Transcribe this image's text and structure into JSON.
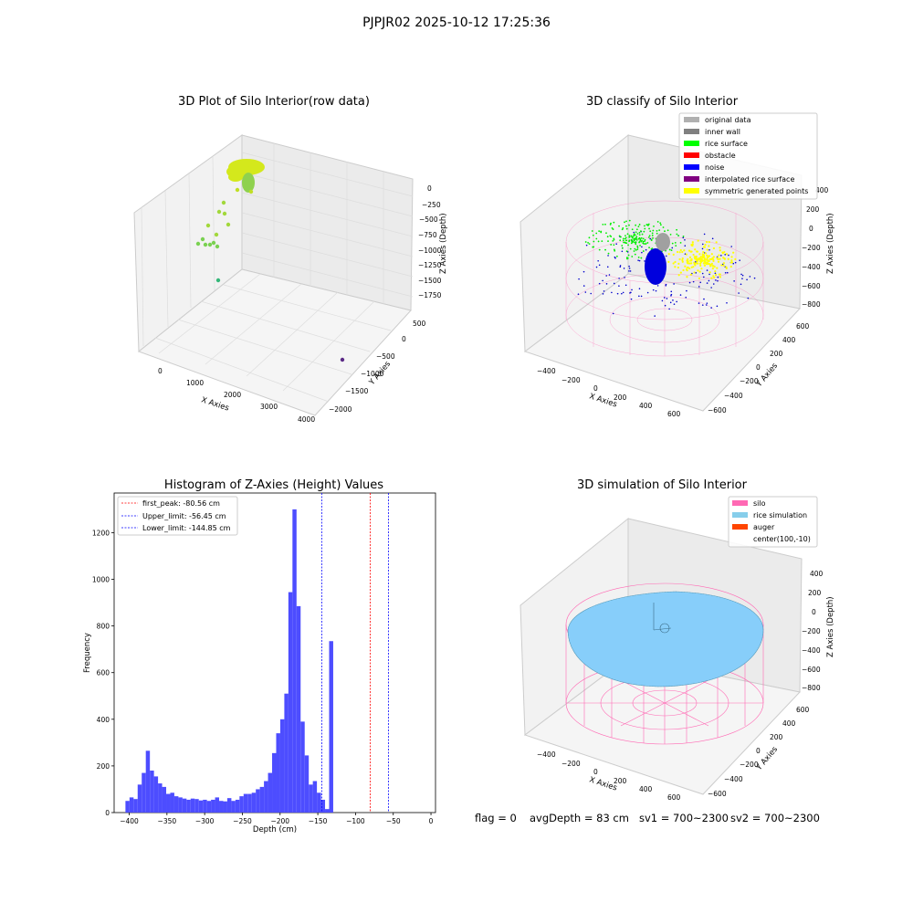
{
  "figure": {
    "suptitle": "PJPJR02 2025-10-12 17:25:36"
  },
  "colors": {
    "hist_bar": "#4d4dff",
    "first_peak_line": "#ff0000",
    "limit_line": "#0000ff",
    "silo_wire": "#ff69b4",
    "rice": "#87cefa"
  },
  "chart_data": [
    {
      "id": "raw",
      "type": "scatter",
      "projection": "3d",
      "title": "3D Plot of Silo Interior(row data)",
      "xlabel": "X Axies",
      "ylabel": "Y Axies",
      "zlabel": "Z Axies (Depth)",
      "xticks": [
        "0",
        "1000",
        "2000",
        "3000",
        "4000"
      ],
      "yticks": [
        "500",
        "0",
        "−500",
        "−1000",
        "−1500",
        "−2000"
      ],
      "zticks": [
        "0",
        "−250",
        "−500",
        "−750",
        "−1000",
        "−1250",
        "−1500",
        "−1750"
      ],
      "points": [
        {
          "x": 4000,
          "y": -1200,
          "z": -1900
        },
        {
          "x": 700,
          "y": -200,
          "z": -1650
        },
        {
          "x": 500,
          "y": 300,
          "z": -1050
        },
        {
          "x": 600,
          "y": 200,
          "z": -1000
        },
        {
          "x": 650,
          "y": 100,
          "z": -950
        },
        {
          "x": 400,
          "y": 300,
          "z": -750
        },
        {
          "x": 600,
          "y": 250,
          "z": -400
        },
        {
          "x": 500,
          "y": 250,
          "z": -100
        }
      ]
    },
    {
      "id": "classify",
      "type": "scatter",
      "projection": "3d",
      "title": "3D classify of Silo Interior",
      "xlabel": "X Axies",
      "ylabel": "Y Axies",
      "zlabel": "Z Axies (Depth)",
      "xticks": [
        "−400",
        "−200",
        "0",
        "200",
        "400",
        "600"
      ],
      "yticks": [
        "600",
        "400",
        "200",
        "0",
        "−200",
        "−400",
        "−600"
      ],
      "zticks": [
        "400",
        "200",
        "0",
        "−200",
        "−400",
        "−600",
        "−800"
      ],
      "legend": {
        "position": "top-right",
        "items": [
          {
            "label": "original data",
            "color": "#b0b0b0"
          },
          {
            "label": "inner wall",
            "color": "#808080"
          },
          {
            "label": "rice surface",
            "color": "#00ff00"
          },
          {
            "label": "obstacle",
            "color": "#ff0000"
          },
          {
            "label": "noise",
            "color": "#0000ff"
          },
          {
            "label": "interpolated rice surface",
            "color": "#800080"
          },
          {
            "label": "symmetric generated points",
            "color": "#ffff00"
          }
        ]
      }
    },
    {
      "id": "histogram",
      "type": "bar",
      "title": "Histogram of Z-Axies (Height) Values",
      "xlabel": "Depth (cm)",
      "ylabel": "Frequency",
      "xlim": [
        -420,
        6
      ],
      "ylim": [
        0,
        1370
      ],
      "xticks": [
        -400,
        -350,
        -300,
        -250,
        -200,
        -150,
        -100,
        -50,
        0
      ],
      "yticks": [
        0,
        200,
        400,
        600,
        800,
        1000,
        1200
      ],
      "bin_start": -405,
      "bin_width": 5.4,
      "counts": [
        50,
        65,
        58,
        120,
        170,
        265,
        180,
        155,
        125,
        110,
        80,
        85,
        70,
        65,
        60,
        55,
        60,
        58,
        52,
        55,
        50,
        55,
        65,
        50,
        48,
        62,
        50,
        55,
        70,
        80,
        80,
        85,
        100,
        110,
        135,
        170,
        255,
        340,
        400,
        510,
        945,
        1300,
        885,
        390,
        245,
        120,
        135,
        85,
        55,
        15,
        735
      ],
      "lines": [
        {
          "x": -80.56,
          "color": "#ff0000",
          "label": "first_peak: -80.56 cm"
        },
        {
          "x": -56.45,
          "color": "#0000ff",
          "label": "Upper_limit: -56.45 cm"
        },
        {
          "x": -144.85,
          "color": "#0000ff",
          "label": "Lower_limit: -144.85 cm"
        }
      ],
      "legend_position": "top-left"
    },
    {
      "id": "simulation",
      "type": "area",
      "projection": "3d",
      "title": "3D simulation of Silo Interior",
      "xlabel": "X Axies",
      "ylabel": "Y Axies",
      "zlabel": "Z Axies (Depth)",
      "xticks": [
        "−400",
        "−200",
        "0",
        "200",
        "400",
        "600"
      ],
      "yticks": [
        "600",
        "400",
        "200",
        "0",
        "−200",
        "−400",
        "−600"
      ],
      "zticks": [
        "400",
        "200",
        "0",
        "−200",
        "−400",
        "−600",
        "−800"
      ],
      "legend": {
        "position": "top-right",
        "items": [
          {
            "label": "silo",
            "color": "#ff69b4"
          },
          {
            "label": "rice simulation",
            "color": "#87ceeb"
          },
          {
            "label": "auger",
            "color": "#ff4500"
          },
          {
            "label": "center(100,-10)",
            "color": ""
          }
        ]
      }
    }
  ],
  "footer": {
    "flag": "flag = 0",
    "avg_depth": "avgDepth = 83 cm",
    "sv1": "sv1 = 700~2300",
    "sv2": "sv2 = 700~2300"
  }
}
